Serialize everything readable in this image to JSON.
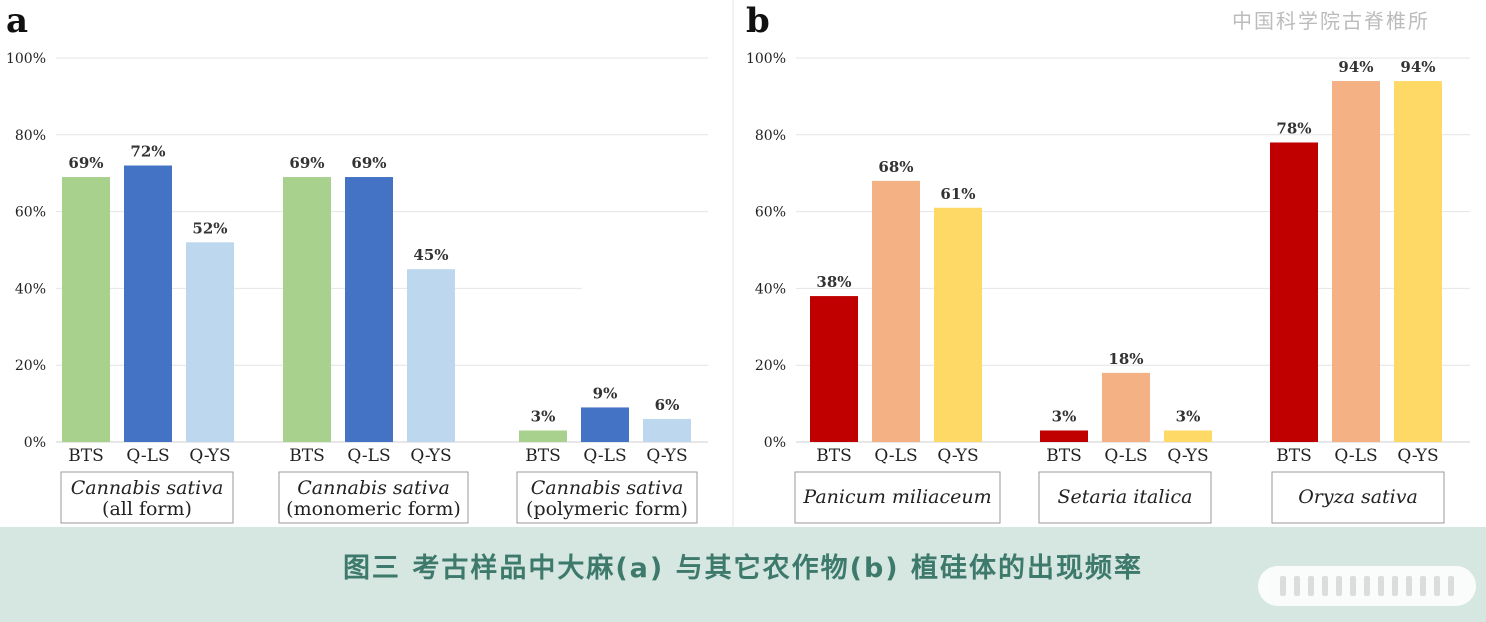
{
  "watermark": "中国科学院古脊椎所",
  "caption": "图三 考古样品中大麻(a) 与其它农作物(b) 植硅体的出现频率",
  "chart_data": [
    {
      "panel": "a",
      "type": "bar",
      "yticks": [
        "0%",
        "20%",
        "40%",
        "60%",
        "80%",
        "100%"
      ],
      "ylim": [
        0,
        100
      ],
      "grid": true,
      "groups": [
        {
          "label": "Cannabis sativa",
          "sublabel": "(all form)",
          "bars": [
            {
              "category": "BTS",
              "value": 69,
              "label": "69%",
              "color": "#a9d18e"
            },
            {
              "category": "Q-LS",
              "value": 72,
              "label": "72%",
              "color": "#4472c4"
            },
            {
              "category": "Q-YS",
              "value": 52,
              "label": "52%",
              "color": "#bdd7ee"
            }
          ]
        },
        {
          "label": "Cannabis sativa",
          "sublabel": "(monomeric form)",
          "bars": [
            {
              "category": "BTS",
              "value": 69,
              "label": "69%",
              "color": "#a9d18e"
            },
            {
              "category": "Q-LS",
              "value": 69,
              "label": "69%",
              "color": "#4472c4"
            },
            {
              "category": "Q-YS",
              "value": 45,
              "label": "45%",
              "color": "#bdd7ee"
            }
          ]
        },
        {
          "label": "Cannabis sativa",
          "sublabel": "(polymeric form)",
          "bars": [
            {
              "category": "BTS",
              "value": 3,
              "label": "3%",
              "color": "#a9d18e"
            },
            {
              "category": "Q-LS",
              "value": 9,
              "label": "9%",
              "color": "#4472c4"
            },
            {
              "category": "Q-YS",
              "value": 6,
              "label": "6%",
              "color": "#bdd7ee"
            }
          ]
        }
      ]
    },
    {
      "panel": "b",
      "type": "bar",
      "yticks": [
        "0%",
        "20%",
        "40%",
        "60%",
        "80%",
        "100%"
      ],
      "ylim": [
        0,
        100
      ],
      "grid": true,
      "groups": [
        {
          "label": "Panicum miliaceum",
          "sublabel": "",
          "bars": [
            {
              "category": "BTS",
              "value": 38,
              "label": "38%",
              "color": "#c00000"
            },
            {
              "category": "Q-LS",
              "value": 68,
              "label": "68%",
              "color": "#f4b183"
            },
            {
              "category": "Q-YS",
              "value": 61,
              "label": "61%",
              "color": "#ffd966"
            }
          ]
        },
        {
          "label": "Setaria italica",
          "sublabel": "",
          "bars": [
            {
              "category": "BTS",
              "value": 3,
              "label": "3%",
              "color": "#c00000"
            },
            {
              "category": "Q-LS",
              "value": 18,
              "label": "18%",
              "color": "#f4b183"
            },
            {
              "category": "Q-YS",
              "value": 3,
              "label": "3%",
              "color": "#ffd966"
            }
          ]
        },
        {
          "label": "Oryza sativa",
          "sublabel": "",
          "bars": [
            {
              "category": "BTS",
              "value": 78,
              "label": "78%",
              "color": "#c00000"
            },
            {
              "category": "Q-LS",
              "value": 94,
              "label": "94%",
              "color": "#f4b183"
            },
            {
              "category": "Q-YS",
              "value": 94,
              "label": "94%",
              "color": "#ffd966"
            }
          ]
        }
      ]
    }
  ]
}
